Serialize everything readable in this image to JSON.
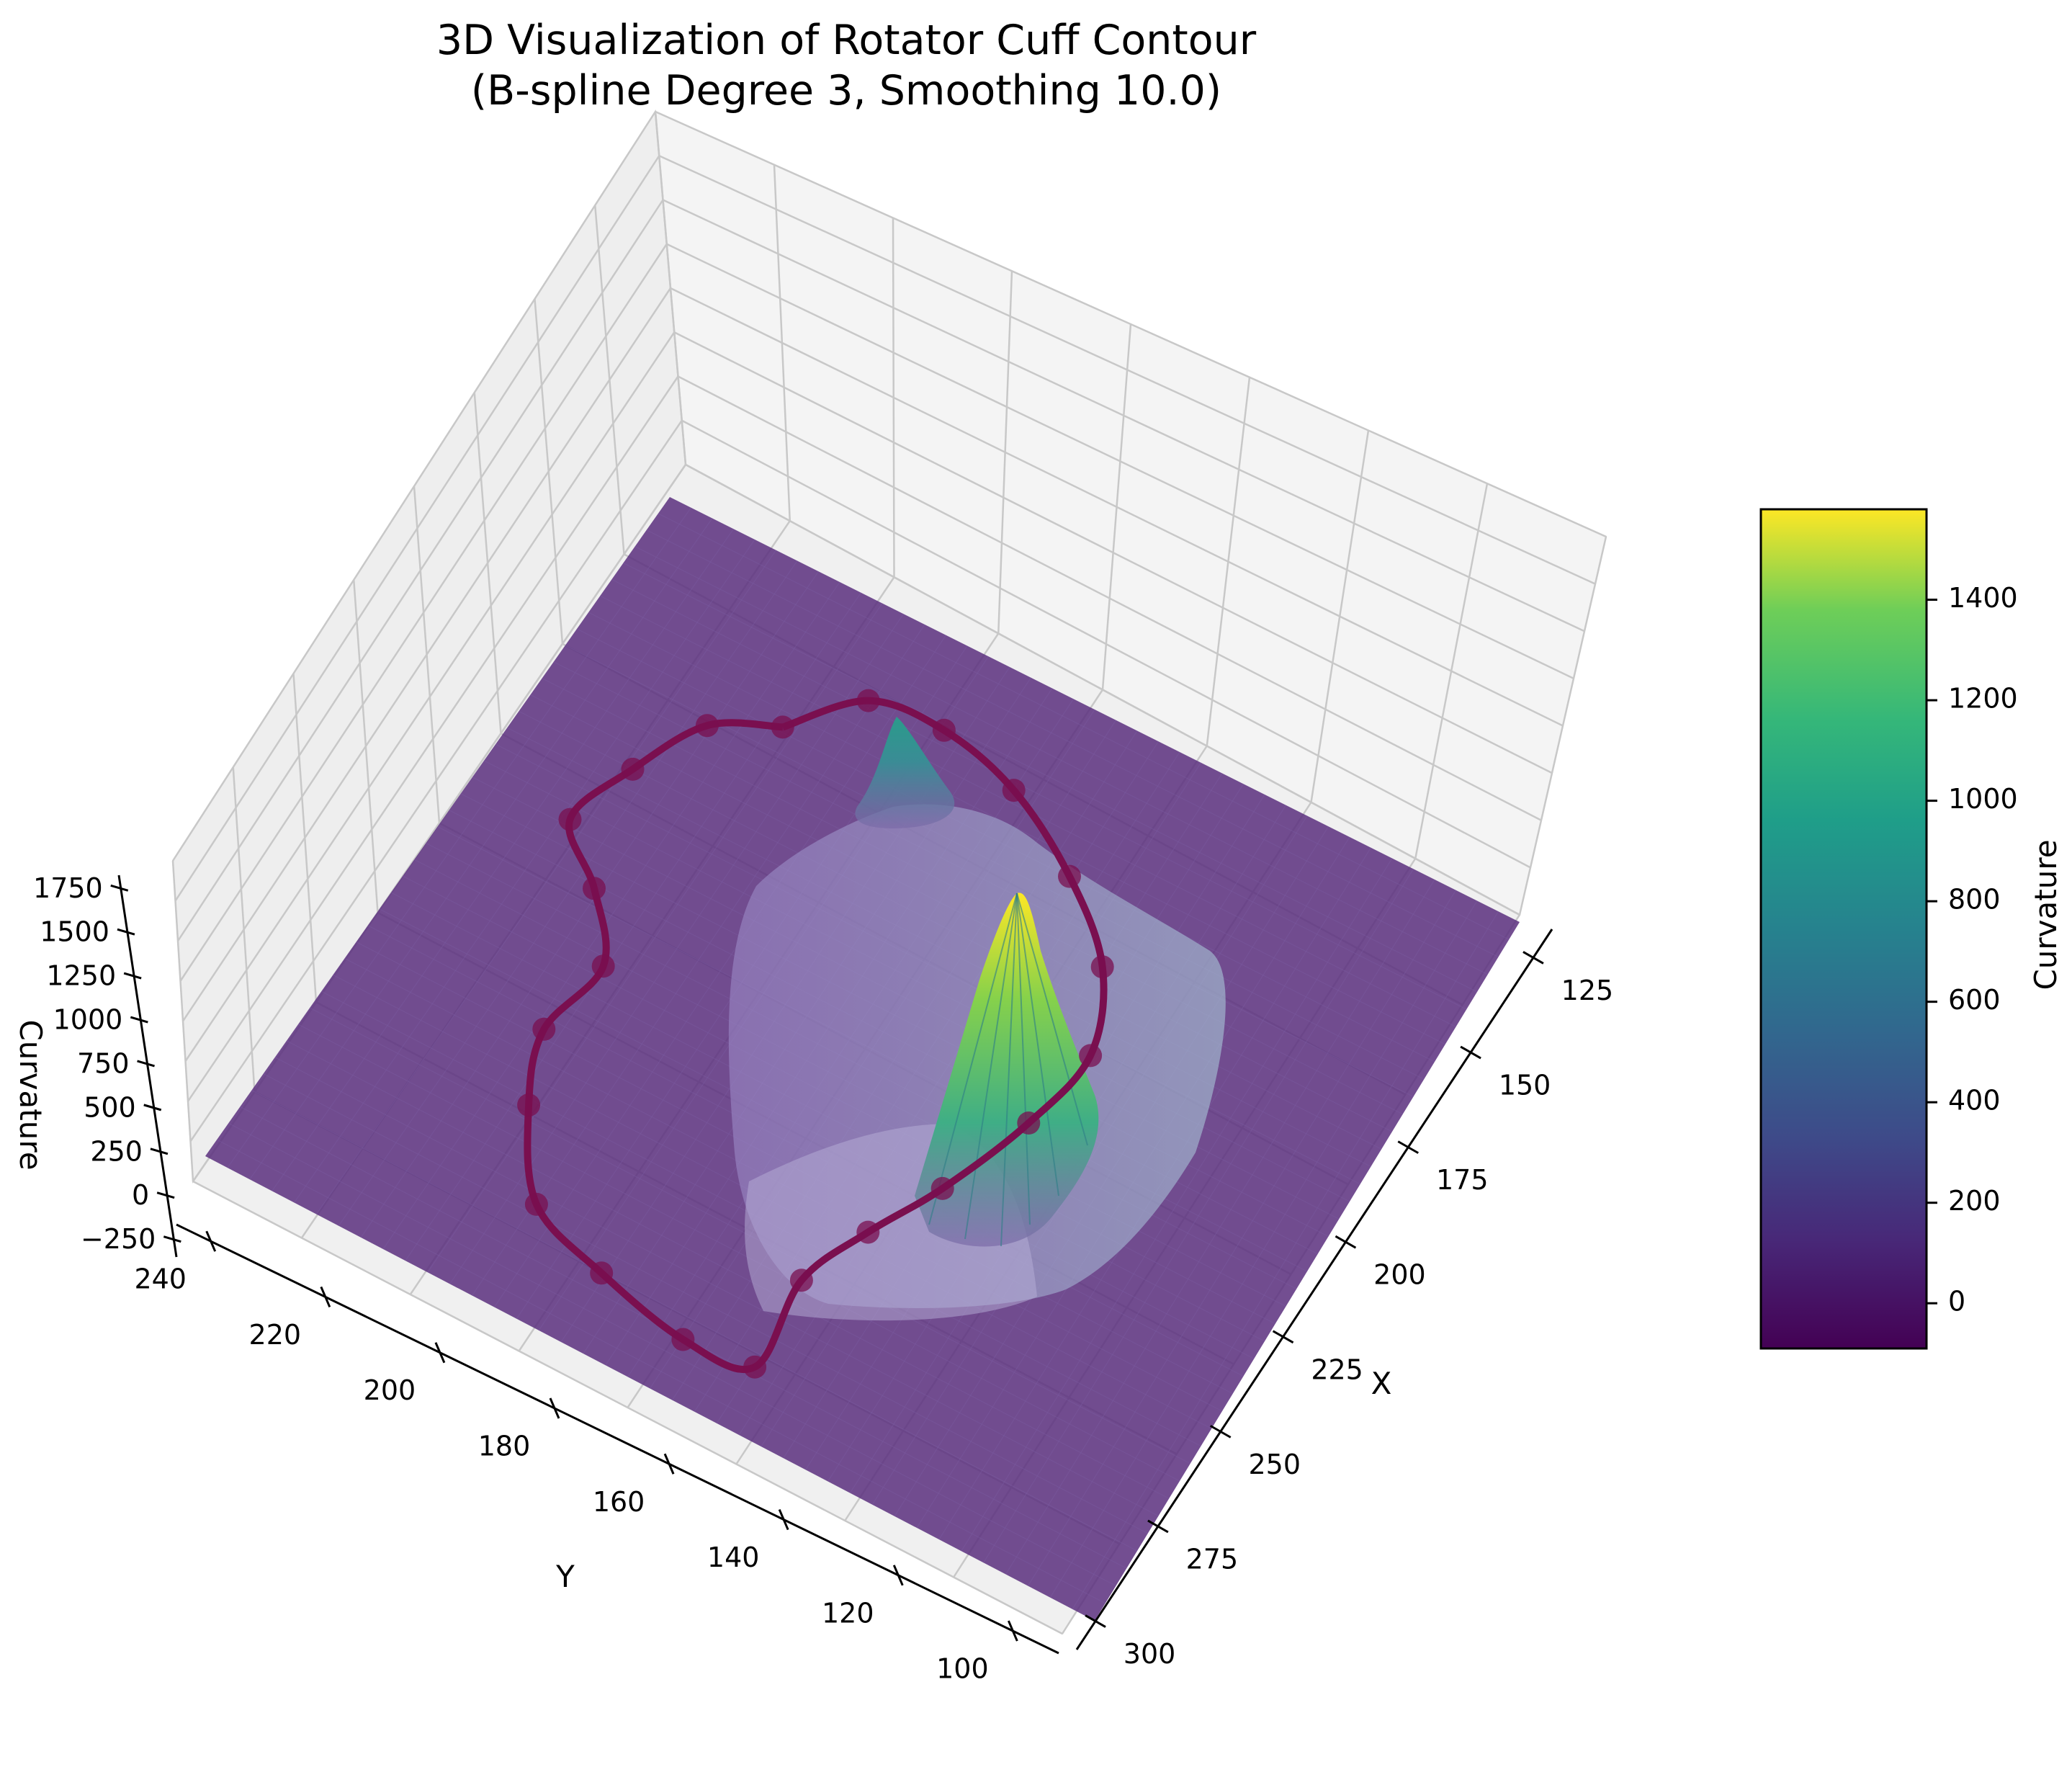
{
  "chart_data": {
    "type": "surface3d",
    "title_line1": "3D Visualization of Rotator Cuff Contour",
    "title_line2": "(B-spline Degree 3, Smoothing 10.0)",
    "xlabel": "X",
    "ylabel": "Y",
    "zlabel": "Curvature",
    "x_ticks": [
      "125",
      "150",
      "175",
      "200",
      "225",
      "250",
      "275",
      "300"
    ],
    "y_ticks": [
      "240",
      "220",
      "200",
      "180",
      "160",
      "140",
      "120",
      "100"
    ],
    "z_ticks": [
      "1750",
      "1500",
      "1250",
      "1000",
      "750",
      "500",
      "250",
      "0",
      "−250"
    ],
    "xlim": [
      112,
      302
    ],
    "ylim": [
      92,
      254
    ],
    "zlim": [
      -300,
      1800
    ],
    "colorbar": {
      "label": "Curvature",
      "ticks": [
        "1400",
        "1200",
        "1000",
        "800",
        "600",
        "400",
        "200",
        "0"
      ],
      "range": [
        -90,
        1580
      ],
      "colormap": "viridis"
    },
    "surface_peaks": [
      {
        "x": 205,
        "y": 165,
        "curvature": 1580
      },
      {
        "x": 160,
        "y": 190,
        "curvature": 700
      }
    ],
    "contour_color": "#7a0f4f",
    "contour_points": [
      {
        "x": 160,
        "y": 227
      },
      {
        "x": 145,
        "y": 220
      },
      {
        "x": 135,
        "y": 205
      },
      {
        "x": 128,
        "y": 190
      },
      {
        "x": 140,
        "y": 180
      },
      {
        "x": 150,
        "y": 167
      },
      {
        "x": 145,
        "y": 150
      },
      {
        "x": 150,
        "y": 135
      },
      {
        "x": 162,
        "y": 118
      },
      {
        "x": 182,
        "y": 112
      },
      {
        "x": 205,
        "y": 108
      },
      {
        "x": 222,
        "y": 110
      },
      {
        "x": 222,
        "y": 130
      },
      {
        "x": 230,
        "y": 145
      },
      {
        "x": 240,
        "y": 160
      },
      {
        "x": 250,
        "y": 180
      },
      {
        "x": 255,
        "y": 198
      },
      {
        "x": 248,
        "y": 215
      },
      {
        "x": 232,
        "y": 228
      },
      {
        "x": 212,
        "y": 238
      },
      {
        "x": 192,
        "y": 242
      },
      {
        "x": 174,
        "y": 240
      },
      {
        "x": 160,
        "y": 227
      }
    ]
  }
}
